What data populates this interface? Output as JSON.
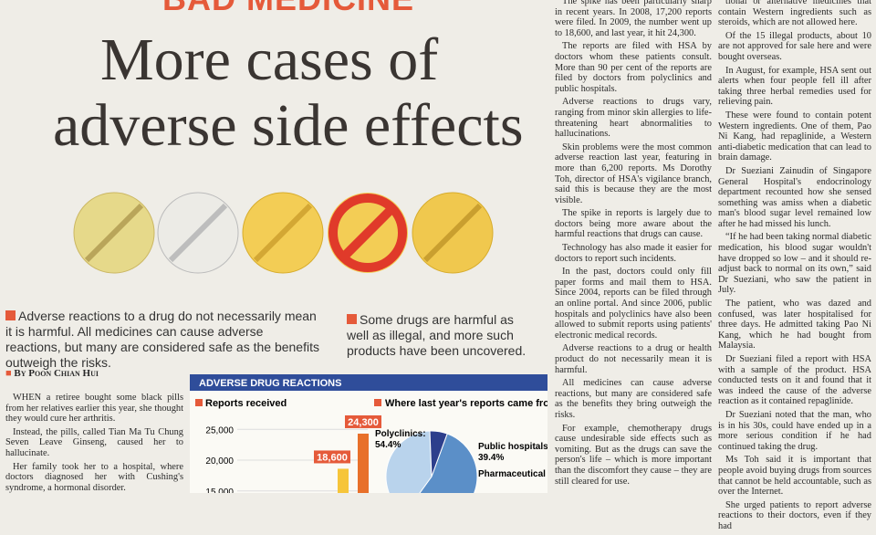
{
  "header": {
    "section": "BAD MEDICINE",
    "headline_line1": "More cases of",
    "headline_line2": "adverse side effects"
  },
  "captions": [
    "Adverse reactions to a drug do not necessarily mean it is harmful. All medicines can cause adverse reactions, but many are considered safe as the benefits outweigh the risks.",
    "Some drugs are harmful as well as illegal, and more such products have been uncovered."
  ],
  "byline": "By Poon Chian Hui",
  "columns": [
    [
      "WHEN a retiree bought some black pills from her relatives earlier this year, she thought they would cure her arthritis.",
      "Instead, the pills, called Tian Ma Tu Chung Seven Leave Ginseng, caused her to hallucinate.",
      "Her family took her to a hospital, where doctors diagnosed her with Cushing's syndrome, a hormonal disorder."
    ],
    [
      "The spike has been particularly sharp in recent years. In 2008, 17,200 reports were filed. In 2009, the number went up to 18,600, and last year, it hit 24,300.",
      "The reports are filed with HSA by doctors whom these patients consult. More than 90 per cent of the reports are filed by doctors from polyclinics and public hospitals.",
      "Adverse reactions to drugs vary, ranging from minor skin allergies to life-threatening heart abnormalities to hallucinations.",
      "Skin problems were the most common adverse reaction last year, featuring in more than 6,200 reports. Ms Dorothy Toh, director of HSA's vigilance branch, said this is because they are the most visible.",
      "The spike in reports is largely due to doctors being more aware about the harmful reactions that drugs can cause.",
      "Technology has also made it easier for doctors to report such incidents.",
      "In the past, doctors could only fill paper forms and mail them to HSA. Since 2004, reports can be filed through an online portal. And since 2006, public hospitals and polyclinics have also been allowed to submit reports using patients' electronic medical records.",
      "Adverse reactions to a drug or health product do not necessarily mean it is harmful.",
      "All medicines can cause adverse reactions, but many are considered safe as the benefits they bring outweigh the risks.",
      "For example, chemotherapy drugs cause undesirable side effects such as vomiting. But as the drugs can save the person's life – which is more important than the discomfort they cause – they are still cleared for use."
    ],
    [
      "tional or alternative medicines that contain Western ingredients such as steroids, which are not allowed here.",
      "Of the 15 illegal products, about 10 are not approved for sale here and were bought overseas.",
      "In August, for example, HSA sent out alerts when four people fell ill after taking three herbal remedies used for relieving pain.",
      "These were found to contain potent Western ingredients. One of them, Pao Ni Kang, had repaglinide, a Western anti-diabetic medication that can lead to brain damage.",
      "Dr Sueziani Zainudin of Singapore General Hospital's endocrinology department recounted how she sensed something was amiss when a diabetic man's blood sugar level remained low after he had missed his lunch.",
      "“If he had been taking normal diabetic medication, his blood sugar wouldn't have dropped so low – and it should re-adjust back to normal on its own,” said Dr Sueziani, who saw the patient in July.",
      "The patient, who was dazed and confused, was later hospitalised for three days. He admitted taking Pao Ni Kang, which he had bought from Malaysia.",
      "Dr Sueziani filed a report with HSA with a sample of the product. HSA conducted tests on it and found that it was indeed the cause of the adverse reaction as it contained repaglinide.",
      "Dr Sueziani noted that the man, who is in his 30s, could have ended up in a more serious condition if he had continued taking the drug.",
      "Ms Toh said it is important that people avoid buying drugs from sources that cannot be held accountable, such as over the Internet.",
      "She urged patients to report adverse reactions to their doctors, even if they had"
    ]
  ],
  "infographic": {
    "title": "ADVERSE DRUG REACTIONS",
    "bar_title": "Reports received",
    "pie_title": "Where last year's reports came from",
    "ylim": [
      12000,
      28000
    ],
    "yticks": [
      {
        "value": 15000,
        "label": "15,000"
      },
      {
        "value": 20000,
        "label": "20,000"
      },
      {
        "value": 25000,
        "label": "25,000"
      }
    ],
    "bars": [
      {
        "value": 18600,
        "label": "18,600",
        "color": "#f6c53a"
      },
      {
        "value": 24300,
        "label": "24,300",
        "color": "#e8702a"
      }
    ],
    "slices": [
      {
        "name": "Polyclinics:",
        "value": 54.4,
        "label": "54.4%",
        "color": "#5b8fc8"
      },
      {
        "name": "Public hospitals:",
        "value": 39.4,
        "label": "39.4%",
        "color": "#b9d3ec"
      },
      {
        "name": "Pharmaceutical companies:",
        "color": "#2d3e8c"
      }
    ]
  }
}
